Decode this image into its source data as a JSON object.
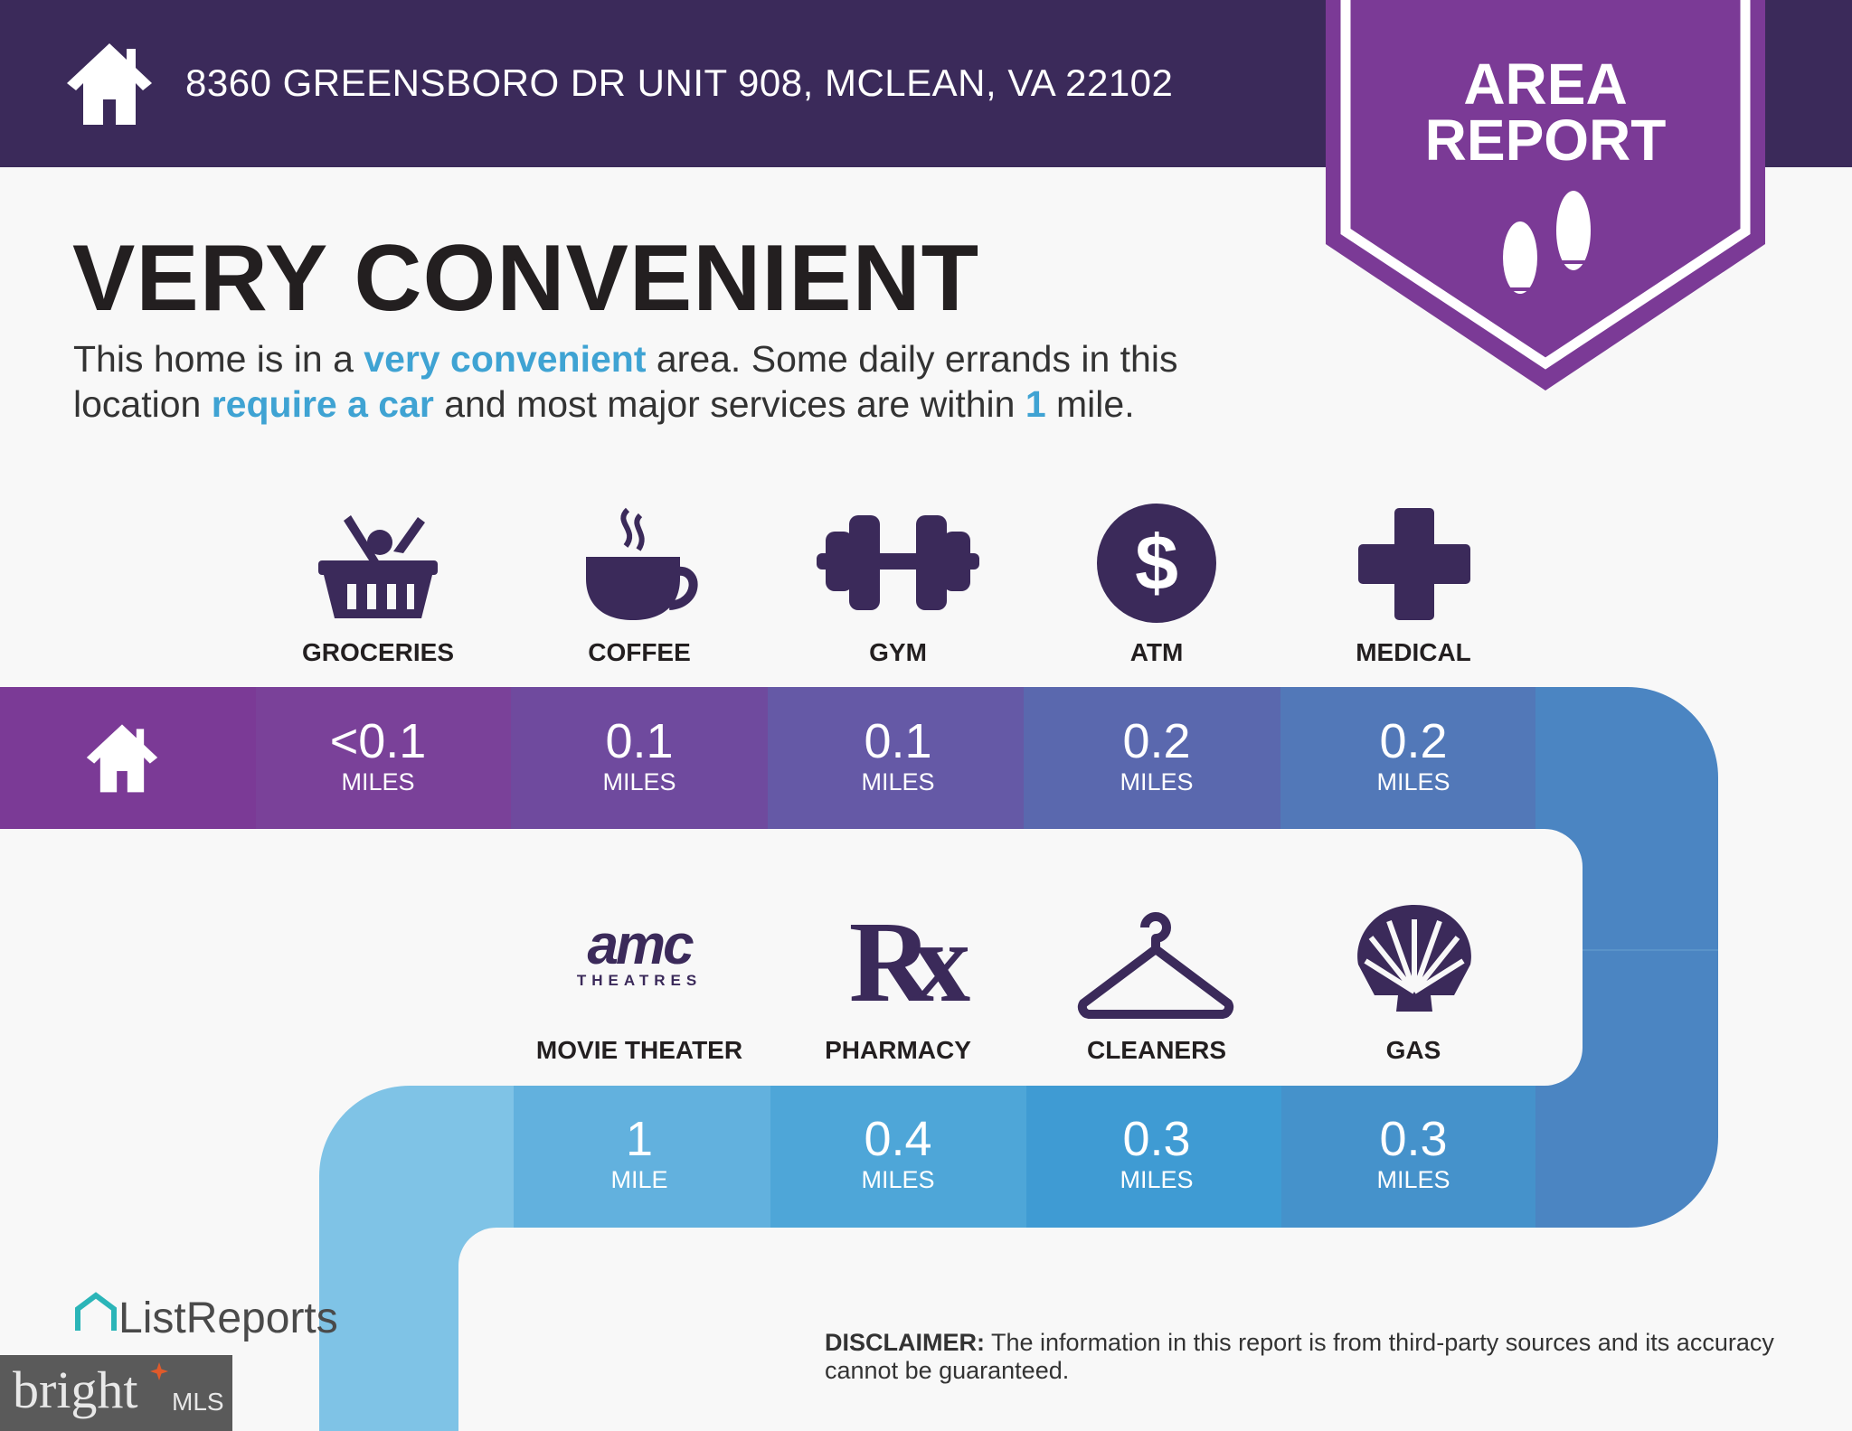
{
  "header": {
    "address": "8360 GREENSBORO DR UNIT 908, MCLEAN, VA 22102",
    "icon": "house-icon"
  },
  "banner": {
    "line1": "AREA",
    "line2": "REPORT",
    "icon": "footprints-icon"
  },
  "rating": "VERY CONVENIENT",
  "description": {
    "l1a": "This home is in a ",
    "l1b": "very convenient",
    "l1c": " area. Some daily errands in this",
    "l2a": "location ",
    "l2b": "require a car",
    "l2c": " and most major services are within ",
    "l2d": "1",
    "l2e": " mile."
  },
  "row1": [
    {
      "label": "GROCERIES",
      "value": "<0.1",
      "unit": "MILES",
      "icon": "grocery-basket-icon"
    },
    {
      "label": "COFFEE",
      "value": "0.1",
      "unit": "MILES",
      "icon": "coffee-cup-icon"
    },
    {
      "label": "GYM",
      "value": "0.1",
      "unit": "MILES",
      "icon": "dumbbell-icon"
    },
    {
      "label": "ATM",
      "value": "0.2",
      "unit": "MILES",
      "icon": "dollar-icon"
    },
    {
      "label": "MEDICAL",
      "value": "0.2",
      "unit": "MILES",
      "icon": "medical-cross-icon"
    }
  ],
  "row2": [
    {
      "label": "MOVIE THEATER",
      "value": "1",
      "unit": "MILE",
      "icon": "amc-theatres-logo",
      "logo_text": "amc",
      "logo_sub": "THEATRES"
    },
    {
      "label": "PHARMACY",
      "value": "0.4",
      "unit": "MILES",
      "icon": "rx-icon",
      "logo_text": "Rx"
    },
    {
      "label": "CLEANERS",
      "value": "0.3",
      "unit": "MILES",
      "icon": "hanger-icon"
    },
    {
      "label": "GAS",
      "value": "0.3",
      "unit": "MILES",
      "icon": "shell-icon"
    }
  ],
  "disclaimer": {
    "label": "DISCLAIMER:",
    "text": " The information in this report is from third-party sources and its accuracy cannot be guaranteed."
  },
  "logos": {
    "listreports": "ListReports",
    "bright": "bright",
    "mls": "MLS"
  },
  "colors": {
    "header": "#3b2a5a",
    "accent": "#3fa3d3",
    "banner": "#7b3a96"
  }
}
